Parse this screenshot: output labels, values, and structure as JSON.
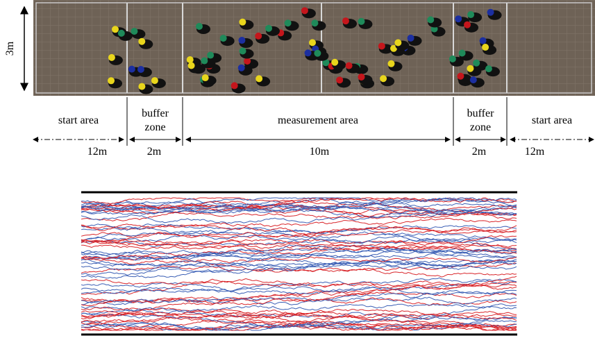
{
  "figure": {
    "height_label": "3m",
    "zones": [
      {
        "label": "start area",
        "length": "12m"
      },
      {
        "label": "buffer zone",
        "length": "2m"
      },
      {
        "label": "measurement area",
        "length": "10m"
      },
      {
        "label": "buffer zone",
        "length": "2m"
      },
      {
        "label": "start area",
        "length": "12m"
      }
    ]
  }
}
